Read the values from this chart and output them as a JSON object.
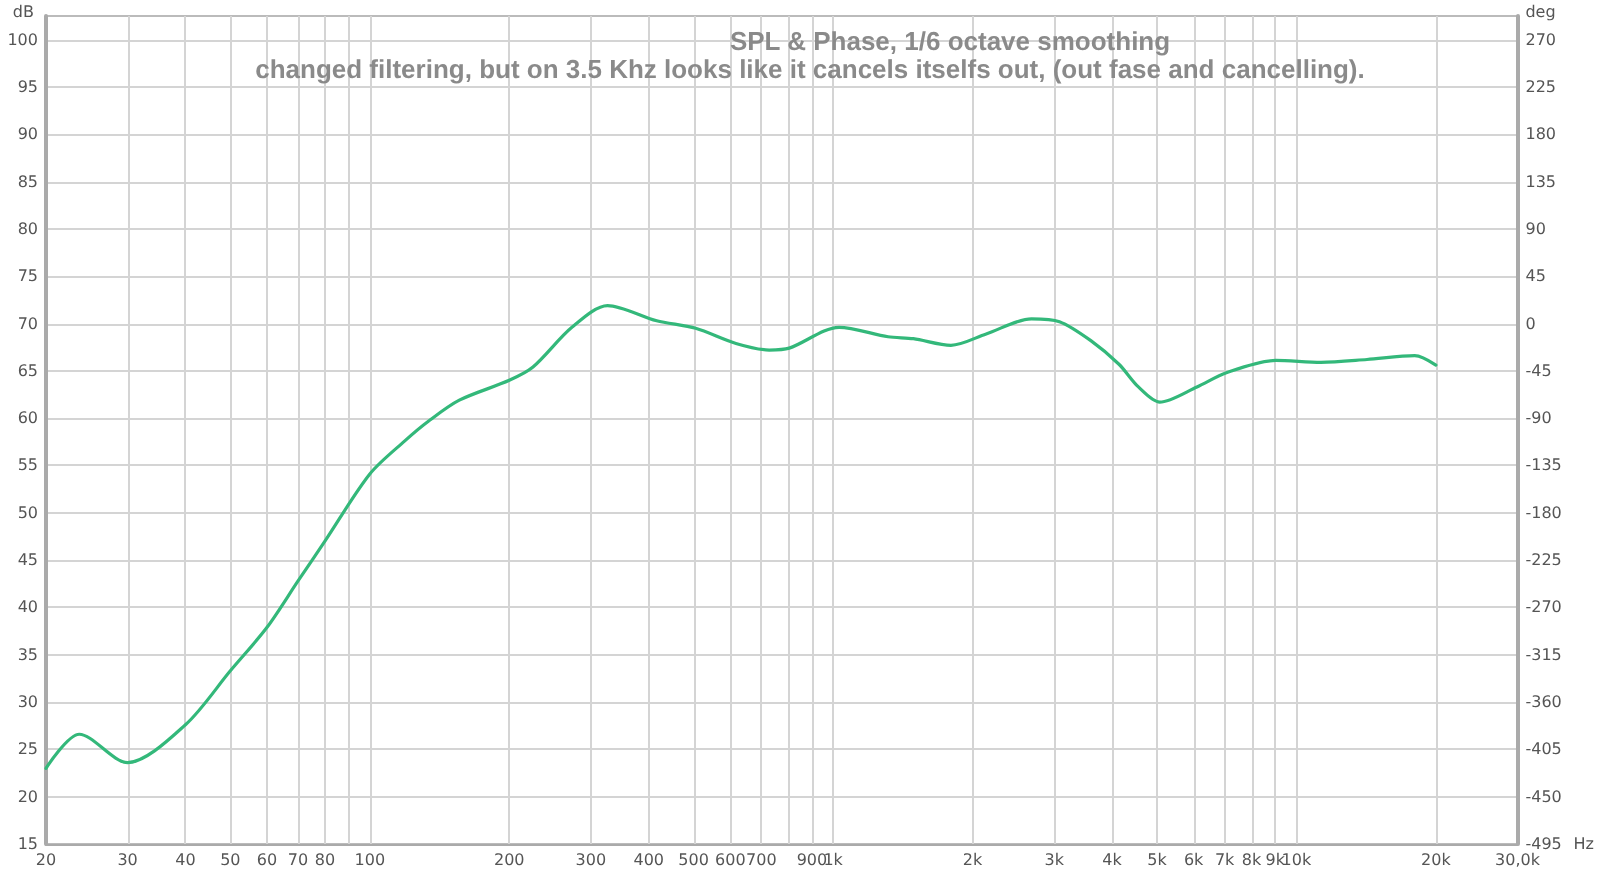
{
  "chart_data": {
    "type": "line",
    "title": "SPL & Phase, 1/6 octave smoothing",
    "subtitle": "changed filtering, but on 3.5 Khz looks like it cancels itselfs out, (out fase and cancelling).",
    "xlabel": "Hz",
    "ylabel": "dB",
    "y2label": "deg",
    "log": "x",
    "grid": true,
    "marker": "none",
    "line_style": "solid",
    "xlim": [
      20,
      30000
    ],
    "xticks": [
      20,
      30,
      40,
      50,
      60,
      70,
      80,
      {
        "value": 90,
        "label": null
      },
      100,
      200,
      300,
      400,
      500,
      600,
      700,
      {
        "value": 800,
        "label": null
      },
      900,
      {
        "value": 1000,
        "label": "1k"
      },
      {
        "value": 2000,
        "label": "2k"
      },
      {
        "value": 3000,
        "label": "3k"
      },
      {
        "value": 4000,
        "label": "4k"
      },
      {
        "value": 5000,
        "label": "5k"
      },
      {
        "value": 6000,
        "label": "6k"
      },
      {
        "value": 7000,
        "label": "7k"
      },
      {
        "value": 8000,
        "label": "8k"
      },
      {
        "value": 9000,
        "label": "9k"
      },
      {
        "value": 10000,
        "label": "10k"
      },
      {
        "value": 20000,
        "label": "20k"
      },
      {
        "value": 30000,
        "label": "30,0k"
      }
    ],
    "ylim": [
      15,
      102.5
    ],
    "yticks": [
      15,
      20,
      25,
      30,
      35,
      40,
      45,
      50,
      55,
      60,
      65,
      70,
      75,
      80,
      85,
      90,
      95,
      100
    ],
    "y2lim": [
      -495,
      292.5
    ],
    "y2ticks": [
      -495,
      -450,
      -405,
      -360,
      -315,
      -270,
      -225,
      -180,
      -135,
      -90,
      -45,
      0,
      45,
      90,
      135,
      180,
      225,
      270
    ],
    "x": [
      20,
      23.6,
      30,
      40,
      50,
      60,
      70,
      80,
      100,
      119,
      134,
      156,
      200,
      225,
      273,
      326,
      416,
      505,
      617,
      728,
      804,
      1030,
      1314,
      1490,
      1796,
      2140,
      2680,
      3080,
      3600,
      4140,
      4560,
      5070,
      6100,
      7060,
      9020,
      11300,
      14200,
      18000,
      20000
    ],
    "series": [
      {
        "color": "#33b87a",
        "values": [
          23.0,
          26.6,
          23.6,
          27.6,
          33.3,
          37.9,
          42.8,
          47.0,
          54.1,
          57.6,
          59.7,
          61.9,
          64.0,
          65.4,
          69.6,
          71.9,
          70.3,
          69.5,
          67.9,
          67.2,
          67.4,
          69.6,
          68.6,
          68.4,
          67.7,
          68.9,
          70.5,
          70.2,
          68.2,
          65.7,
          63.3,
          61.7,
          63.3,
          64.8,
          66.1,
          65.9,
          66.2,
          66.6,
          65.6
        ]
      }
    ]
  }
}
